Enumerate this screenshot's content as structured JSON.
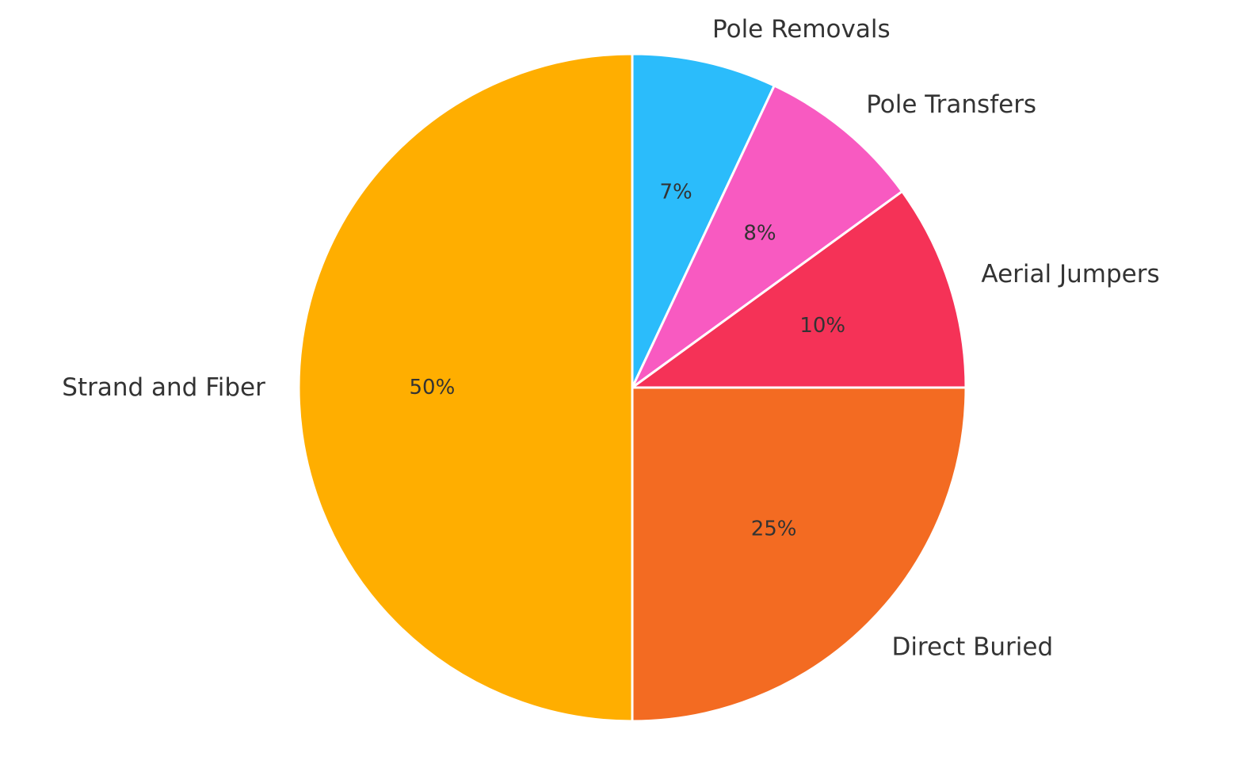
{
  "chart_data": {
    "type": "pie",
    "start_angle": "12 o'clock",
    "direction": "clockwise",
    "slices": [
      {
        "label": "Pole Removals",
        "value": 7,
        "pct_label": "7%",
        "color": "#2bbcfb"
      },
      {
        "label": "Pole Transfers",
        "value": 8,
        "pct_label": "8%",
        "color": "#f85ac1"
      },
      {
        "label": "Aerial Jumpers",
        "value": 10,
        "pct_label": "10%",
        "color": "#f53257"
      },
      {
        "label": "Direct Buried",
        "value": 25,
        "pct_label": "25%",
        "color": "#f36b22"
      },
      {
        "label": "Strand and Fiber",
        "value": 50,
        "pct_label": "50%",
        "color": "#ffae00"
      }
    ],
    "legend": "none"
  }
}
